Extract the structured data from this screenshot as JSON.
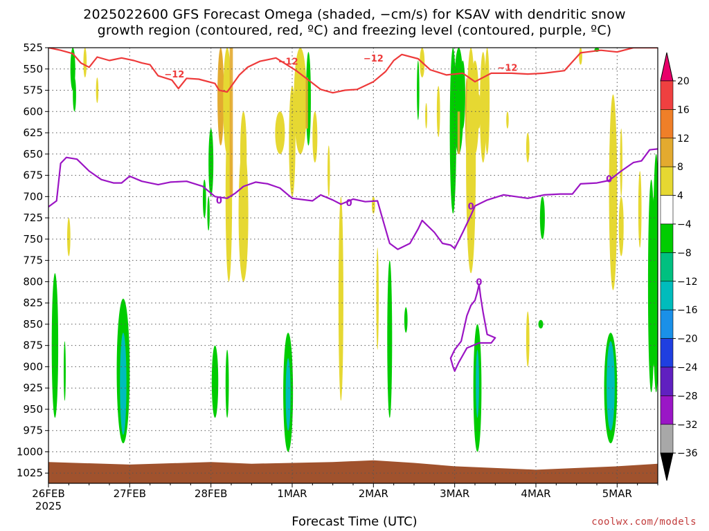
{
  "title_line1": "2025022600 GFS Forecast Omega (shaded, −cm/s) for KSAV with dendritic snow",
  "title_line2": "growth region (contoured, red, ºC) and freezing level (contoured, purple, ºC)",
  "xlabel": "Forecast Time (UTC)",
  "credit": "coolwx.com/models",
  "chart_data": {
    "type": "heatmap",
    "y_axis": {
      "label": "",
      "levels": [
        525,
        550,
        575,
        600,
        625,
        650,
        675,
        700,
        725,
        750,
        775,
        800,
        825,
        850,
        875,
        900,
        925,
        950,
        975,
        1000,
        1025
      ],
      "range": [
        1025,
        525
      ]
    },
    "x_axis": {
      "label": "Forecast Time (UTC)",
      "start_day": "26FEB",
      "year_label": "2025",
      "ticks": [
        "26FEB",
        "27FEB",
        "28FEB",
        "1MAR",
        "2MAR",
        "3MAR",
        "4MAR",
        "5MAR"
      ],
      "range_days": [
        0,
        7.5
      ]
    },
    "colorbar": {
      "levels": [
        "20",
        "16",
        "12",
        "8",
        "4",
        "−4",
        "−8",
        "−12",
        "−16",
        "−20",
        "−24",
        "−28",
        "−32",
        "−36"
      ],
      "colors": [
        "#e8006a",
        "#ef4040",
        "#ef7f28",
        "#e3aa2f",
        "#e6d832",
        "#ffffff",
        "#00cc00",
        "#00c080",
        "#00bcbc",
        "#1a90e8",
        "#1f3fe0",
        "#6020c0",
        "#9a16c6",
        "#a8a8a8",
        "#000000"
      ]
    },
    "contours": [
      {
        "name": "-12",
        "color": "#ee3a3a",
        "label": "−12",
        "points": [
          [
            0,
            525
          ],
          [
            0.15,
            528
          ],
          [
            0.3,
            532
          ],
          [
            0.4,
            543
          ],
          [
            0.5,
            548
          ],
          [
            0.6,
            536
          ],
          [
            0.75,
            540
          ],
          [
            0.9,
            537
          ],
          [
            1.05,
            540
          ],
          [
            1.15,
            543
          ],
          [
            1.25,
            545
          ],
          [
            1.35,
            558
          ],
          [
            1.52,
            563
          ],
          [
            1.6,
            573
          ],
          [
            1.7,
            561
          ],
          [
            1.85,
            562
          ],
          [
            2.05,
            567
          ],
          [
            2.1,
            575
          ],
          [
            2.2,
            577
          ],
          [
            2.35,
            557
          ],
          [
            2.45,
            548
          ],
          [
            2.6,
            541
          ],
          [
            2.8,
            537
          ],
          [
            3.05,
            552
          ],
          [
            3.2,
            563
          ],
          [
            3.35,
            574
          ],
          [
            3.5,
            578
          ],
          [
            3.65,
            575
          ],
          [
            3.8,
            574
          ],
          [
            4.0,
            565
          ],
          [
            4.15,
            553
          ],
          [
            4.25,
            540
          ],
          [
            4.35,
            533
          ],
          [
            4.55,
            538
          ],
          [
            4.7,
            551
          ],
          [
            4.9,
            557
          ],
          [
            5.1,
            555
          ],
          [
            5.25,
            565
          ],
          [
            5.45,
            555
          ],
          [
            5.7,
            555
          ],
          [
            5.9,
            556
          ],
          [
            6.1,
            555
          ],
          [
            6.35,
            552
          ],
          [
            6.55,
            531
          ],
          [
            6.8,
            528
          ],
          [
            7.0,
            530
          ],
          [
            7.2,
            525
          ],
          [
            7.5,
            525
          ]
        ],
        "label_positions": [
          [
            1.55,
            556
          ],
          [
            2.95,
            541
          ],
          [
            4.0,
            537
          ],
          [
            5.65,
            548
          ]
        ]
      },
      {
        "name": "0",
        "color": "#9b14c4",
        "label": "0",
        "points": [
          [
            0,
            712
          ],
          [
            0.1,
            705
          ],
          [
            0.15,
            661
          ],
          [
            0.22,
            654
          ],
          [
            0.35,
            656
          ],
          [
            0.5,
            670
          ],
          [
            0.65,
            680
          ],
          [
            0.8,
            684
          ],
          [
            0.9,
            684
          ],
          [
            1.0,
            676
          ],
          [
            1.15,
            682
          ],
          [
            1.35,
            686
          ],
          [
            1.5,
            683
          ],
          [
            1.7,
            682
          ],
          [
            1.9,
            688
          ],
          [
            2.05,
            700
          ],
          [
            2.2,
            702
          ],
          [
            2.3,
            696
          ],
          [
            2.4,
            688
          ],
          [
            2.55,
            683
          ],
          [
            2.7,
            685
          ],
          [
            2.85,
            690
          ],
          [
            3.0,
            702
          ],
          [
            3.25,
            705
          ],
          [
            3.35,
            698
          ],
          [
            3.5,
            704
          ],
          [
            3.6,
            709
          ],
          [
            3.75,
            703
          ],
          [
            3.9,
            706
          ],
          [
            4.05,
            705
          ],
          [
            4.1,
            722
          ],
          [
            4.2,
            755
          ],
          [
            4.3,
            762
          ],
          [
            4.45,
            755
          ],
          [
            4.55,
            738
          ],
          [
            4.6,
            728
          ],
          [
            4.75,
            742
          ],
          [
            4.85,
            755
          ],
          [
            4.95,
            757
          ],
          [
            5.0,
            761
          ],
          [
            5.1,
            742
          ],
          [
            5.2,
            722
          ],
          [
            5.25,
            711
          ],
          [
            5.4,
            704
          ],
          [
            5.6,
            698
          ],
          [
            5.75,
            700
          ],
          [
            5.9,
            702
          ],
          [
            6.1,
            698
          ],
          [
            6.3,
            697
          ],
          [
            6.45,
            697
          ],
          [
            6.55,
            685
          ],
          [
            6.75,
            684
          ],
          [
            6.9,
            681
          ],
          [
            7.05,
            670
          ],
          [
            7.2,
            660
          ],
          [
            7.3,
            658
          ],
          [
            7.4,
            645
          ],
          [
            7.5,
            644
          ]
        ],
        "label_positions": [
          [
            2.1,
            704
          ],
          [
            3.7,
            707
          ],
          [
            5.2,
            711
          ],
          [
            6.9,
            679
          ]
        ]
      },
      {
        "name": "0-island",
        "color": "#9b14c4",
        "label": "0",
        "points": [
          [
            5.0,
            880
          ],
          [
            5.08,
            870
          ],
          [
            5.15,
            840
          ],
          [
            5.2,
            828
          ],
          [
            5.25,
            822
          ],
          [
            5.28,
            812
          ],
          [
            5.3,
            803
          ],
          [
            5.32,
            818
          ],
          [
            5.35,
            836
          ],
          [
            5.4,
            862
          ],
          [
            5.45,
            864
          ],
          [
            5.5,
            866
          ],
          [
            5.45,
            872
          ],
          [
            5.3,
            872
          ],
          [
            5.15,
            878
          ],
          [
            5.05,
            895
          ],
          [
            5.0,
            905
          ],
          [
            4.98,
            900
          ],
          [
            4.95,
            890
          ],
          [
            5.0,
            880
          ]
        ],
        "label_positions": [
          [
            5.3,
            800
          ]
        ]
      }
    ]
  }
}
